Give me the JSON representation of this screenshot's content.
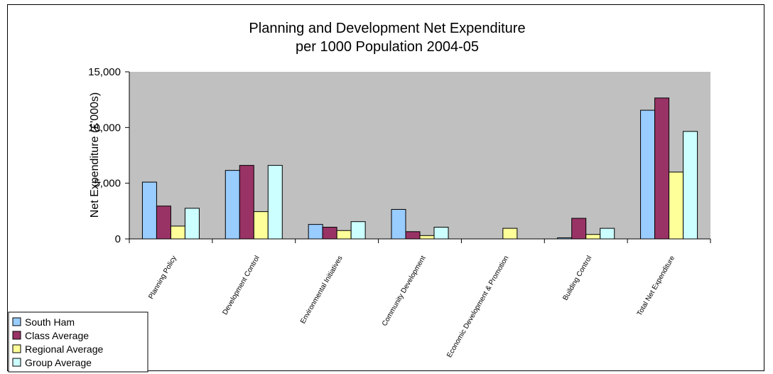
{
  "chart_data": {
    "type": "bar",
    "title_lines": [
      "Planning and Development Net Expenditure",
      "per 1000 Population 2004-05"
    ],
    "ylabel": "Net Expenditure (£'000s)",
    "xlabel": "",
    "ylim": [
      0,
      15000
    ],
    "yticks": [
      0,
      5000,
      10000,
      15000
    ],
    "ytick_labels": [
      "0",
      "5,000",
      "10,000",
      "15,000"
    ],
    "grid": false,
    "legend_position": "bottom-left",
    "plot_background": "#c0c0c0",
    "categories": [
      "Planning Policy",
      "Development Control",
      "Environmental Initiatives",
      "Community Development",
      "Economic Development & Promotion",
      "Building Control",
      "Total Net Expenditure"
    ],
    "series": [
      {
        "name": "South Ham",
        "color": "#99ccff",
        "values": [
          5100,
          6150,
          1300,
          2650,
          0,
          100,
          11550
        ]
      },
      {
        "name": "Class Average",
        "color": "#993366",
        "values": [
          2950,
          6600,
          1050,
          650,
          0,
          1850,
          12650
        ]
      },
      {
        "name": "Regional Average",
        "color": "#ffff99",
        "values": [
          1150,
          2450,
          750,
          300,
          950,
          400,
          6000
        ]
      },
      {
        "name": "Group Average",
        "color": "#ccffff",
        "values": [
          2750,
          6600,
          1550,
          1050,
          0,
          950,
          9650
        ]
      }
    ]
  }
}
